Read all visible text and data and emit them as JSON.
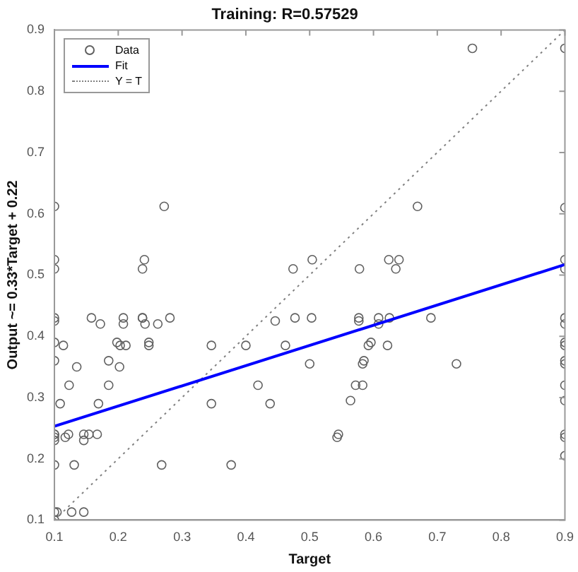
{
  "chart_data": {
    "type": "scatter",
    "title": "Training: R=0.57529",
    "xlabel": "Target",
    "ylabel": "Output ~= 0.33*Target + 0.22",
    "xlim": [
      0.1,
      0.9
    ],
    "ylim": [
      0.1,
      0.9
    ],
    "xticks": [
      0.1,
      0.2,
      0.3,
      0.4,
      0.5,
      0.6,
      0.7,
      0.8,
      0.9
    ],
    "yticks": [
      0.1,
      0.2,
      0.3,
      0.4,
      0.5,
      0.6,
      0.7,
      0.8,
      0.9
    ],
    "grid": false,
    "legend": "top left",
    "marker": "circle",
    "series": [
      {
        "name": "Data",
        "color": "#606060",
        "x": [
          0.1,
          0.1,
          0.1,
          0.1,
          0.1,
          0.1,
          0.1,
          0.1,
          0.1,
          0.1,
          0.1,
          0.1,
          0.1,
          0.1,
          0.272,
          0.241,
          0.238,
          0.474,
          0.238,
          0.158,
          0.172,
          0.208,
          0.208,
          0.238,
          0.242,
          0.262,
          0.281,
          0.114,
          0.198,
          0.203,
          0.212,
          0.248,
          0.248,
          0.135,
          0.185,
          0.202,
          0.123,
          0.185,
          0.109,
          0.169,
          0.117,
          0.122,
          0.146,
          0.146,
          0.154,
          0.167,
          0.131,
          0.268,
          0.377,
          0.104,
          0.127,
          0.146,
          0.346,
          0.4,
          0.462,
          0.419,
          0.346,
          0.438,
          0.446,
          0.477,
          0.755,
          0.669,
          0.504,
          0.578,
          0.624,
          0.64,
          0.635,
          0.503,
          0.577,
          0.577,
          0.608,
          0.608,
          0.625,
          0.69,
          0.596,
          0.592,
          0.622,
          0.5,
          0.585,
          0.583,
          0.73,
          0.572,
          0.583,
          0.564,
          0.545,
          0.543,
          0.9,
          0.9,
          0.9,
          0.9,
          0.9,
          0.9,
          0.9,
          0.9,
          0.9,
          0.9,
          0.9,
          0.9,
          0.9,
          0.9,
          0.9
        ],
        "values": [
          0.612,
          0.525,
          0.51,
          0.43,
          0.425,
          0.39,
          0.36,
          0.24,
          0.235,
          0.19,
          0.113,
          0.1,
          0.24,
          0.23,
          0.612,
          0.525,
          0.51,
          0.51,
          0.43,
          0.43,
          0.42,
          0.43,
          0.42,
          0.43,
          0.42,
          0.42,
          0.43,
          0.385,
          0.39,
          0.385,
          0.385,
          0.39,
          0.385,
          0.35,
          0.36,
          0.35,
          0.32,
          0.32,
          0.29,
          0.29,
          0.235,
          0.24,
          0.24,
          0.23,
          0.24,
          0.24,
          0.19,
          0.19,
          0.19,
          0.113,
          0.113,
          0.113,
          0.385,
          0.385,
          0.385,
          0.32,
          0.29,
          0.29,
          0.425,
          0.43,
          0.87,
          0.612,
          0.525,
          0.51,
          0.525,
          0.525,
          0.51,
          0.43,
          0.43,
          0.425,
          0.43,
          0.42,
          0.43,
          0.43,
          0.39,
          0.385,
          0.385,
          0.355,
          0.36,
          0.355,
          0.355,
          0.32,
          0.32,
          0.295,
          0.24,
          0.235,
          0.87,
          0.61,
          0.525,
          0.51,
          0.43,
          0.42,
          0.39,
          0.385,
          0.36,
          0.355,
          0.32,
          0.295,
          0.24,
          0.235,
          0.205
        ]
      },
      {
        "name": "Fit",
        "color": "#0000ff",
        "type": "line",
        "marker": "none",
        "line_style": "solid",
        "x": [
          0.1,
          0.9
        ],
        "values": [
          0.253,
          0.517
        ]
      },
      {
        "name": "Y = T",
        "color": "#808080",
        "type": "line",
        "marker": "none",
        "line_style": "dotted",
        "x": [
          0.1,
          0.9
        ],
        "values": [
          0.1,
          0.9
        ]
      }
    ]
  }
}
